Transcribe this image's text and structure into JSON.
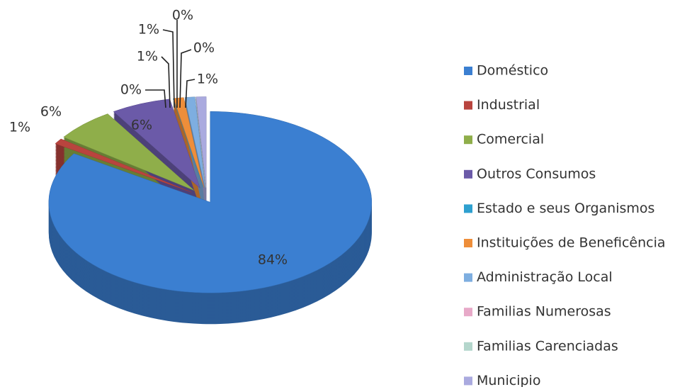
{
  "chart_data": {
    "type": "pie",
    "categories": [
      "Doméstico",
      "Industrial",
      "Comercial",
      "Outros Consumos",
      "Estado e seus Organismos",
      "Instituições de Beneficência",
      "Administração Local",
      "Familias Numerosas",
      "Familias Carenciadas",
      "Municipio"
    ],
    "values": [
      84,
      1,
      6,
      6,
      0,
      1,
      1,
      0,
      0,
      1
    ],
    "value_labels": [
      "84%",
      "1%",
      "6%",
      "6%",
      "0%",
      "1%",
      "1%",
      "0%",
      "0%",
      "1%"
    ],
    "colors": [
      "#3b7fd1",
      "#b9443e",
      "#8fae4a",
      "#6b5aa8",
      "#2ea0cf",
      "#ee8e3a",
      "#7eaee0",
      "#e7a9c8",
      "#b4d6cc",
      "#aaaadf"
    ],
    "legend": "right"
  }
}
